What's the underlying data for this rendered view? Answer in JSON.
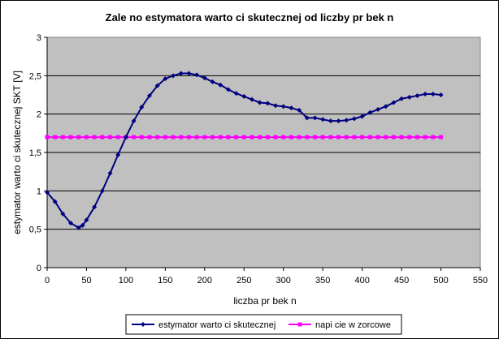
{
  "chart_data": {
    "type": "line",
    "title": "Zale  no    estymatora warto  ci skutecznej od liczby pr  bek n",
    "xlabel": "liczba pr  bek n",
    "ylabel": "estymator warto  ci skutecznej SKT [V]",
    "xlim": [
      0,
      550
    ],
    "ylim": [
      0,
      3
    ],
    "x_ticks": [
      "0",
      "50",
      "100",
      "150",
      "200",
      "250",
      "300",
      "350",
      "400",
      "450",
      "500",
      "550"
    ],
    "y_ticks": [
      "0",
      "0,5",
      "1",
      "1,5",
      "2",
      "2,5",
      "3"
    ],
    "grid": true,
    "legend_position": "bottom",
    "plot_background": "#c0c0c0",
    "series": [
      {
        "name": "estymator warto  ci skutecznej",
        "color": "#000080",
        "marker": "diamond",
        "x": [
          0,
          10,
          20,
          30,
          40,
          45,
          50,
          60,
          70,
          80,
          90,
          100,
          110,
          120,
          130,
          140,
          150,
          160,
          170,
          180,
          190,
          200,
          210,
          220,
          230,
          240,
          250,
          260,
          270,
          280,
          290,
          300,
          310,
          320,
          330,
          340,
          350,
          360,
          370,
          380,
          390,
          400,
          410,
          420,
          430,
          440,
          450,
          460,
          470,
          480,
          490,
          500
        ],
        "y": [
          0.98,
          0.86,
          0.7,
          0.58,
          0.52,
          0.55,
          0.62,
          0.79,
          1.0,
          1.23,
          1.47,
          1.7,
          1.91,
          2.09,
          2.24,
          2.37,
          2.46,
          2.5,
          2.53,
          2.53,
          2.51,
          2.47,
          2.42,
          2.38,
          2.32,
          2.27,
          2.23,
          2.19,
          2.15,
          2.14,
          2.11,
          2.1,
          2.08,
          2.05,
          1.95,
          1.95,
          1.93,
          1.91,
          1.91,
          1.92,
          1.94,
          1.97,
          2.02,
          2.06,
          2.1,
          2.15,
          2.2,
          2.22,
          2.24,
          2.26,
          2.26,
          2.25
        ]
      },
      {
        "name": "napi  cie w zorcowe",
        "color": "#ff00ff",
        "marker": "square",
        "x": [
          0,
          10,
          20,
          30,
          40,
          50,
          60,
          70,
          80,
          90,
          100,
          110,
          120,
          130,
          140,
          150,
          160,
          170,
          180,
          190,
          200,
          210,
          220,
          230,
          240,
          250,
          260,
          270,
          280,
          290,
          300,
          310,
          320,
          330,
          340,
          350,
          360,
          370,
          380,
          390,
          400,
          410,
          420,
          430,
          440,
          450,
          460,
          470,
          480,
          490,
          500
        ],
        "y": [
          1.7,
          1.7,
          1.7,
          1.7,
          1.7,
          1.7,
          1.7,
          1.7,
          1.7,
          1.7,
          1.7,
          1.7,
          1.7,
          1.7,
          1.7,
          1.7,
          1.7,
          1.7,
          1.7,
          1.7,
          1.7,
          1.7,
          1.7,
          1.7,
          1.7,
          1.7,
          1.7,
          1.7,
          1.7,
          1.7,
          1.7,
          1.7,
          1.7,
          1.7,
          1.7,
          1.7,
          1.7,
          1.7,
          1.7,
          1.7,
          1.7,
          1.7,
          1.7,
          1.7,
          1.7,
          1.7,
          1.7,
          1.7,
          1.7,
          1.7,
          1.7
        ]
      }
    ]
  }
}
